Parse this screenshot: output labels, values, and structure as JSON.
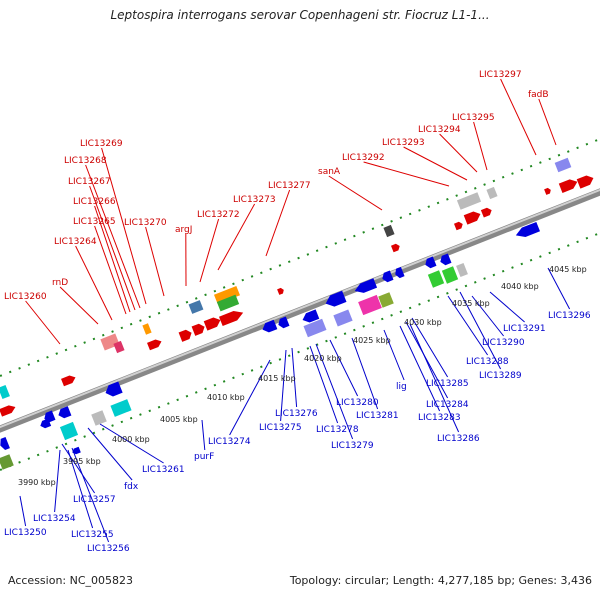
{
  "title": "Leptospira interrogans serovar Copenhageni str. Fiocruz L1-1...",
  "footer": {
    "accession": "Accession: NC_005823",
    "stats": "Topology: circular; Length: 4,277,185 bp; Genes: 3,436"
  },
  "colors": {
    "forward": "#cc0000",
    "reverse": "#0000cc",
    "backbone": "#999999",
    "tick": "#228822"
  },
  "top_labels": [
    "LIC13297",
    "fadB",
    "LIC13295",
    "LIC13294",
    "LIC13293",
    "LIC13292",
    "sanA",
    "LIC13277",
    "LIC13273",
    "LIC13272",
    "argJ",
    "LIC13270",
    "LIC13269",
    "LIC13268",
    "LIC13267",
    "LIC13266",
    "LIC13265",
    "LIC13264",
    "rnD",
    "LIC13260"
  ],
  "bottom_labels": [
    "LIC13296",
    "LIC13291",
    "LIC13290",
    "LIC13289",
    "LIC13288",
    "LIC13285",
    "LIC13284",
    "LIC13283",
    "LIC13286",
    "lig",
    "LIC13281",
    "LIC13280",
    "LIC13279",
    "LIC13278",
    "LIC13276",
    "LIC13275",
    "LIC13274",
    "purF",
    "LIC13261",
    "fdx",
    "LIC13257",
    "LIC13254",
    "LIC13255",
    "LIC13256",
    "LIC13250"
  ],
  "scale_labels": [
    "4045 kbp",
    "4040 kbp",
    "4035 kbp",
    "4030 kbp",
    "4025 kbp",
    "4020 kbp",
    "4015 kbp",
    "4010 kbp",
    "4005 kbp",
    "4000 kbp",
    "3995 kbp",
    "3990 kbp"
  ]
}
